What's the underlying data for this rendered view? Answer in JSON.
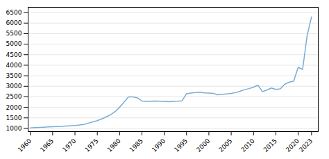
{
  "chart_data": {
    "type": "line",
    "x": [
      1960,
      1961,
      1962,
      1963,
      1964,
      1965,
      1966,
      1967,
      1968,
      1969,
      1970,
      1971,
      1972,
      1973,
      1974,
      1975,
      1976,
      1977,
      1978,
      1979,
      1980,
      1981,
      1982,
      1983,
      1984,
      1985,
      1986,
      1987,
      1988,
      1989,
      1990,
      1991,
      1992,
      1993,
      1994,
      1995,
      1996,
      1997,
      1998,
      1999,
      2000,
      2001,
      2002,
      2003,
      2004,
      2005,
      2006,
      2007,
      2008,
      2009,
      2010,
      2011,
      2012,
      2013,
      2014,
      2015,
      2016,
      2017,
      2018,
      2019,
      2020,
      2021,
      2022,
      2023
    ],
    "values": [
      1020,
      1040,
      1050,
      1060,
      1070,
      1080,
      1090,
      1100,
      1115,
      1125,
      1135,
      1160,
      1190,
      1250,
      1310,
      1370,
      1450,
      1550,
      1650,
      1800,
      2000,
      2250,
      2500,
      2500,
      2450,
      2300,
      2280,
      2290,
      2300,
      2290,
      2280,
      2270,
      2285,
      2295,
      2310,
      2650,
      2680,
      2700,
      2720,
      2690,
      2680,
      2660,
      2600,
      2620,
      2640,
      2660,
      2700,
      2760,
      2840,
      2890,
      2960,
      3050,
      2750,
      2820,
      2920,
      2850,
      2880,
      3100,
      3200,
      3250,
      3900,
      3800,
      5400,
      6300
    ],
    "color": "#7aadd4",
    "xlim": [
      1959.5,
      2024.5
    ],
    "xticks": [
      1960,
      1965,
      1970,
      1975,
      1980,
      1985,
      1990,
      1995,
      2000,
      2005,
      2010,
      2015,
      2020,
      2023
    ],
    "ylim": [
      850,
      6750
    ],
    "yticks": [
      1000,
      1500,
      2000,
      2500,
      3000,
      3500,
      4000,
      4500,
      5000,
      5500,
      6000,
      6500
    ],
    "grid": true
  }
}
